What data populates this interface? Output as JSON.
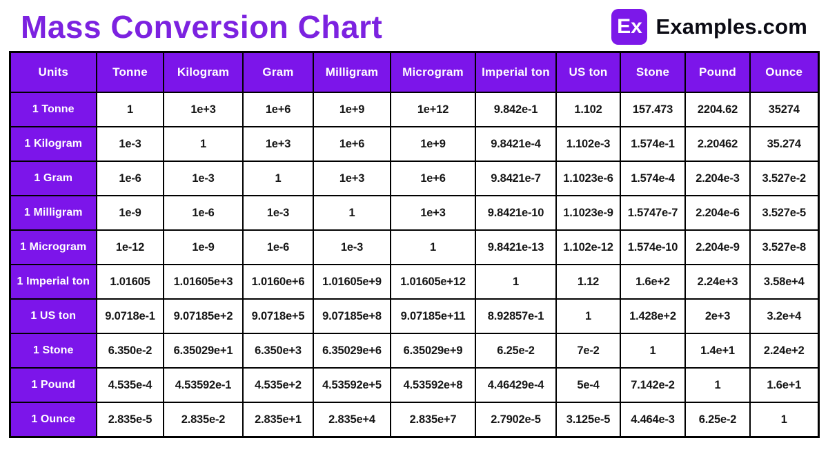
{
  "header": {
    "title": "Mass Conversion Chart",
    "logo": {
      "badge_text": "Ex",
      "site_name": "Examples.com"
    }
  },
  "colors": {
    "title_purple": "#7c22e0",
    "table_purple": "#7c15ea",
    "border_black": "#000000",
    "cell_background": "#ffffff",
    "value_text": "#161616"
  },
  "chart_data": {
    "type": "table",
    "title": "Mass Conversion Chart",
    "columns": [
      "Units",
      "Tonne",
      "Kilogram",
      "Gram",
      "Milligram",
      "Microgram",
      "Imperial ton",
      "US ton",
      "Stone",
      "Pound",
      "Ounce"
    ],
    "rows": [
      {
        "label": "1 Tonne",
        "values": [
          "1",
          "1e+3",
          "1e+6",
          "1e+9",
          "1e+12",
          "9.842e-1",
          "1.102",
          "157.473",
          "2204.62",
          "35274"
        ]
      },
      {
        "label": "1 Kilogram",
        "values": [
          "1e-3",
          "1",
          "1e+3",
          "1e+6",
          "1e+9",
          "9.8421e-4",
          "1.102e-3",
          "1.574e-1",
          "2.20462",
          "35.274"
        ]
      },
      {
        "label": "1 Gram",
        "values": [
          "1e-6",
          "1e-3",
          "1",
          "1e+3",
          "1e+6",
          "9.8421e-7",
          "1.1023e-6",
          "1.574e-4",
          "2.204e-3",
          "3.527e-2"
        ]
      },
      {
        "label": "1 Milligram",
        "values": [
          "1e-9",
          "1e-6",
          "1e-3",
          "1",
          "1e+3",
          "9.8421e-10",
          "1.1023e-9",
          "1.5747e-7",
          "2.204e-6",
          "3.527e-5"
        ]
      },
      {
        "label": "1 Microgram",
        "values": [
          "1e-12",
          "1e-9",
          "1e-6",
          "1e-3",
          "1",
          "9.8421e-13",
          "1.102e-12",
          "1.574e-10",
          "2.204e-9",
          "3.527e-8"
        ]
      },
      {
        "label": "1 Imperial ton",
        "values": [
          "1.01605",
          "1.01605e+3",
          "1.0160e+6",
          "1.01605e+9",
          "1.01605e+12",
          "1",
          "1.12",
          "1.6e+2",
          "2.24e+3",
          "3.58e+4"
        ]
      },
      {
        "label": "1 US ton",
        "values": [
          "9.0718e-1",
          "9.07185e+2",
          "9.0718e+5",
          "9.07185e+8",
          "9.07185e+11",
          "8.92857e-1",
          "1",
          "1.428e+2",
          "2e+3",
          "3.2e+4"
        ]
      },
      {
        "label": "1 Stone",
        "values": [
          "6.350e-2",
          "6.35029e+1",
          "6.350e+3",
          "6.35029e+6",
          "6.35029e+9",
          "6.25e-2",
          "7e-2",
          "1",
          "1.4e+1",
          "2.24e+2"
        ]
      },
      {
        "label": "1 Pound",
        "values": [
          "4.535e-4",
          "4.53592e-1",
          "4.535e+2",
          "4.53592e+5",
          "4.53592e+8",
          "4.46429e-4",
          "5e-4",
          "7.142e-2",
          "1",
          "1.6e+1"
        ]
      },
      {
        "label": "1 Ounce",
        "values": [
          "2.835e-5",
          "2.835e-2",
          "2.835e+1",
          "2.835e+4",
          "2.835e+7",
          "2.7902e-5",
          "3.125e-5",
          "4.464e-3",
          "6.25e-2",
          "1"
        ]
      }
    ]
  }
}
